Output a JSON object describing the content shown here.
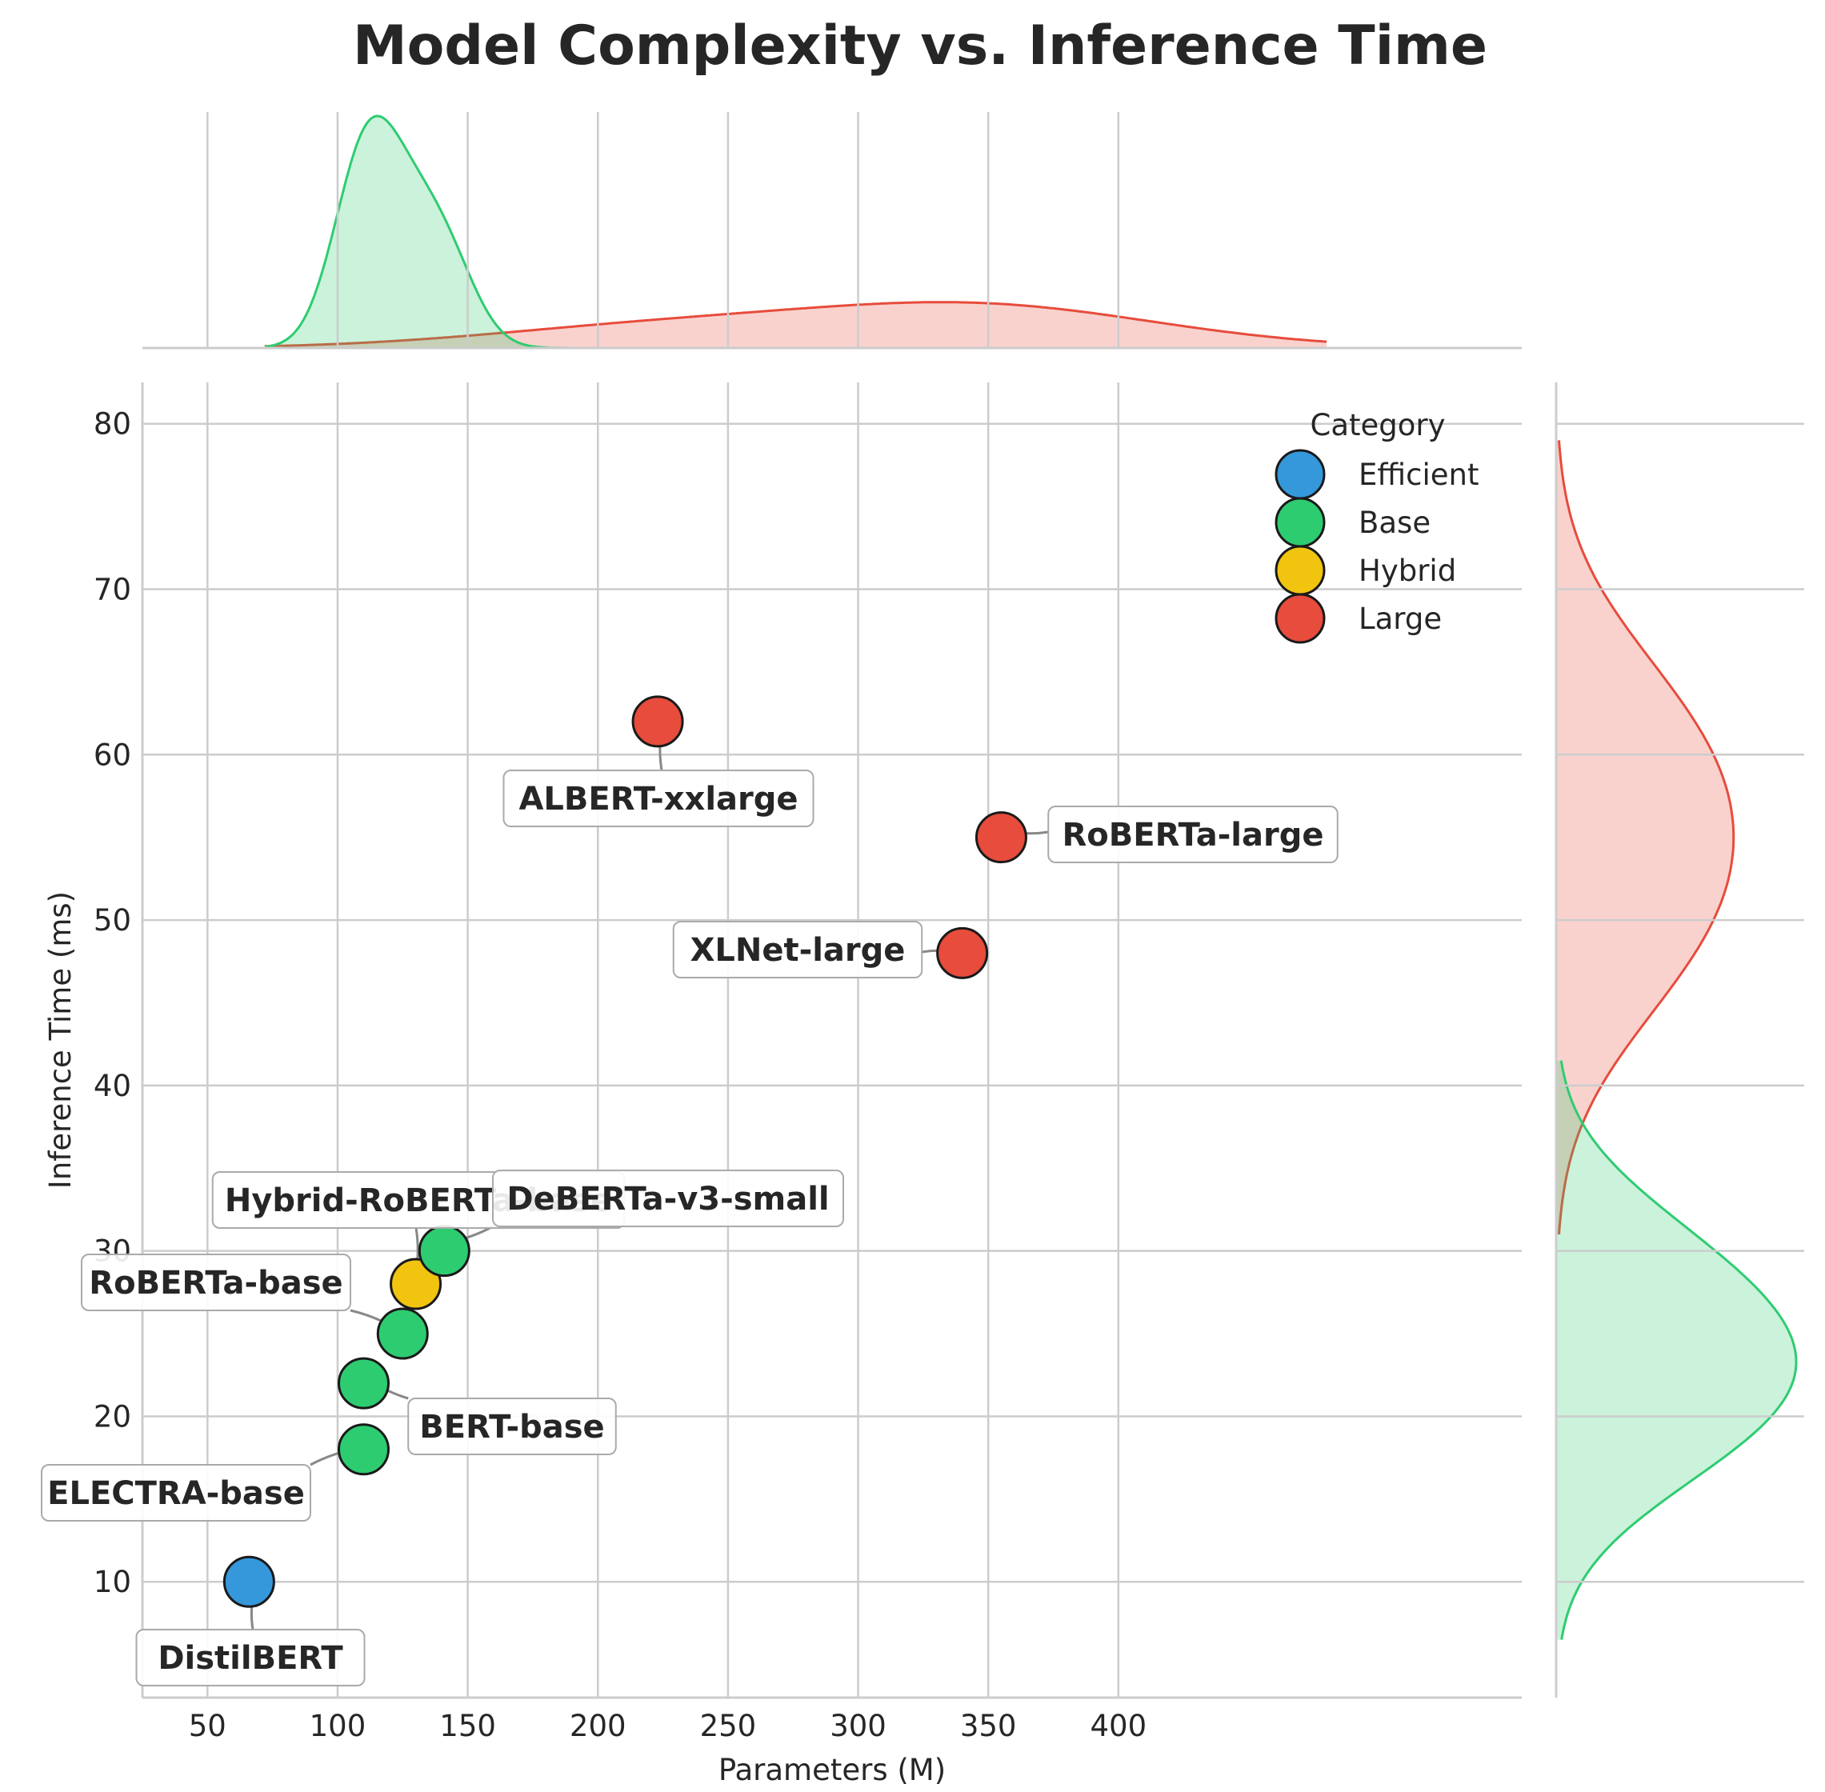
{
  "chart_data": {
    "type": "scatter",
    "title": "Model Complexity vs. Inference Time",
    "xlabel": "Parameters (M)",
    "ylabel": "Inference Time (ms)",
    "xlim": [
      25,
      555
    ],
    "ylim": [
      3,
      82.5
    ],
    "xticks": [
      50,
      100,
      150,
      200,
      250,
      300,
      350,
      400
    ],
    "yticks": [
      10,
      20,
      30,
      40,
      50,
      60,
      70,
      80
    ],
    "xtick_labels": [
      "50",
      "100",
      "150",
      "200",
      "250",
      "300",
      "350",
      "400"
    ],
    "ytick_labels": [
      "10",
      "20",
      "30",
      "40",
      "50",
      "60",
      "70",
      "80"
    ],
    "grid": true,
    "legend": {
      "title": "Category",
      "position": "top-right",
      "entries": [
        {
          "label": "Efficient",
          "color": "#3498db"
        },
        {
          "label": "Base",
          "color": "#2ecc71"
        },
        {
          "label": "Hybrid",
          "color": "#f1c40f"
        },
        {
          "label": "Large",
          "color": "#e74c3c"
        }
      ]
    },
    "points": [
      {
        "model": "DistilBERT",
        "params": 66,
        "time": 10,
        "category": "Efficient"
      },
      {
        "model": "ELECTRA-base",
        "params": 110,
        "time": 18,
        "category": "Base"
      },
      {
        "model": "BERT-base",
        "params": 110,
        "time": 22,
        "category": "Base"
      },
      {
        "model": "RoBERTa-base",
        "params": 125,
        "time": 25,
        "category": "Base"
      },
      {
        "model": "Hybrid-RoBERTa",
        "params": 130,
        "time": 28,
        "category": "Hybrid"
      },
      {
        "model": "DeBERTa-v3-small",
        "params": 141,
        "time": 30,
        "category": "Base"
      },
      {
        "model": "ALBERT-xxlarge",
        "params": 223,
        "time": 62,
        "category": "Large"
      },
      {
        "model": "XLNet-large",
        "params": 340,
        "time": 48,
        "category": "Large"
      },
      {
        "model": "RoBERTa-large",
        "params": 355,
        "time": 55,
        "category": "Large"
      }
    ],
    "annotations": [
      {
        "text": "DistilBERT",
        "target": "DistilBERT"
      },
      {
        "text": "ELECTRA-base",
        "target": "ELECTRA-base"
      },
      {
        "text": "BERT-base",
        "target": "BERT-base"
      },
      {
        "text": "RoBERTa-base",
        "target": "RoBERTa-base"
      },
      {
        "text": "Hybrid-RoBERTa-base",
        "target": "Hybrid-RoBERTa"
      },
      {
        "text": "DeBERTa-v3-small",
        "target": "DeBERTa-v3-small"
      },
      {
        "text": "ALBERT-xxlarge",
        "target": "ALBERT-xxlarge"
      },
      {
        "text": "XLNet-large",
        "target": "XLNet-large"
      },
      {
        "text": "RoBERTa-large",
        "target": "RoBERTa-large"
      }
    ],
    "marginal_top": {
      "type": "kde",
      "variable": "params",
      "series": [
        {
          "category": "Base",
          "color": "#2ecc71",
          "peak_x": 115
        },
        {
          "category": "Large",
          "color": "#e74c3c",
          "peak_x": 340
        }
      ]
    },
    "marginal_right": {
      "type": "kde",
      "variable": "time",
      "series": [
        {
          "category": "Large",
          "color": "#e74c3c",
          "peak_y": 55
        },
        {
          "category": "Base",
          "color": "#2ecc71",
          "peak_y": 23
        }
      ]
    }
  }
}
